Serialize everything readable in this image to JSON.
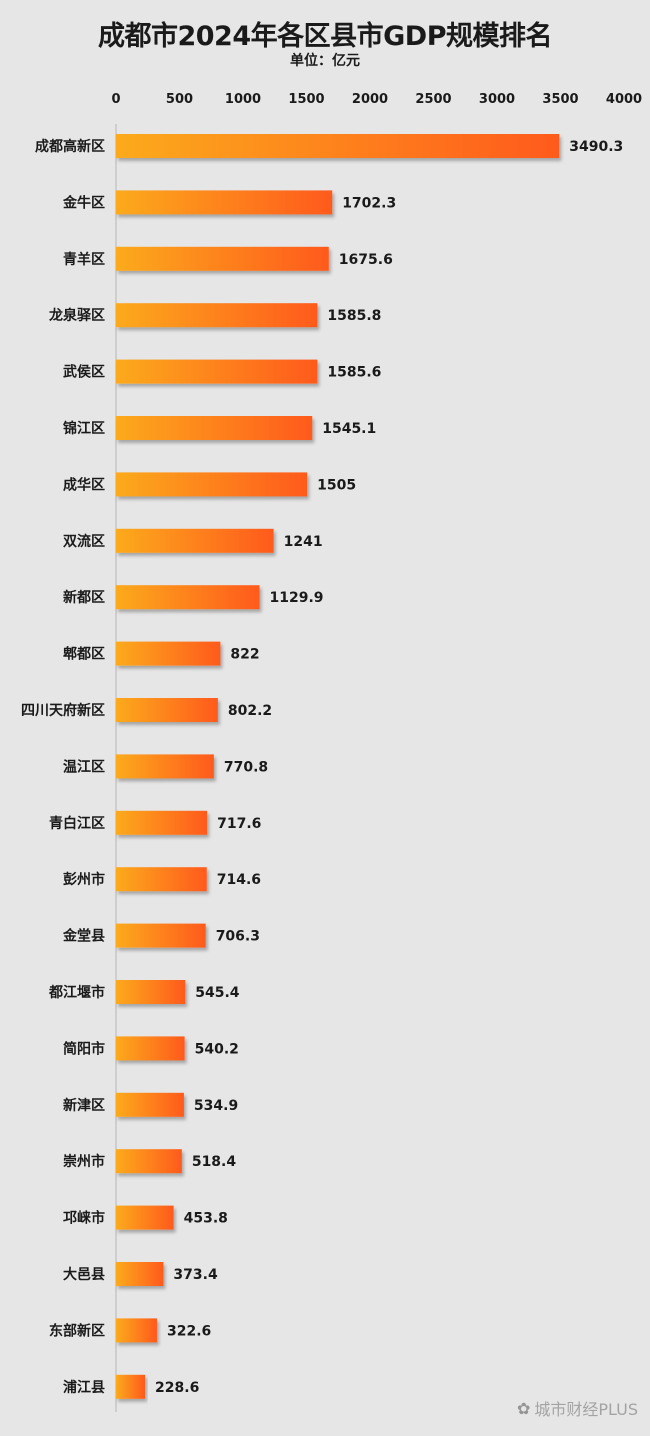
{
  "title": "成都市2024年各区县市GDP规模排名",
  "unit_label": "单位：亿元",
  "watermark": "城市财经PLUS",
  "watermark_icon": "wechat-icon",
  "colors": {
    "bar_start": "#fcaa1c",
    "bar_end": "#ff5a1f",
    "background": "#e6e6e6"
  },
  "chart_data": {
    "type": "bar",
    "orientation": "horizontal",
    "title": "成都市2024年各区县市GDP规模排名",
    "xlabel": "",
    "ylabel": "",
    "unit": "亿元",
    "xlim": [
      0,
      4000
    ],
    "x_ticks": [
      0,
      500,
      1000,
      1500,
      2000,
      2500,
      3000,
      3500,
      4000
    ],
    "x_axis_position": "top",
    "grid": false,
    "categories": [
      "成都高新区",
      "金牛区",
      "青羊区",
      "龙泉驿区",
      "武侯区",
      "锦江区",
      "成华区",
      "双流区",
      "新都区",
      "郫都区",
      "四川天府新区",
      "温江区",
      "青白江区",
      "彭州市",
      "金堂县",
      "都江堰市",
      "简阳市",
      "新津区",
      "崇州市",
      "邛崃市",
      "大邑县",
      "东部新区",
      "浦江县"
    ],
    "values": [
      3490.3,
      1702.3,
      1675.6,
      1585.8,
      1585.6,
      1545.1,
      1505,
      1241,
      1129.9,
      822,
      802.2,
      770.8,
      717.6,
      714.6,
      706.3,
      545.4,
      540.2,
      534.9,
      518.4,
      453.8,
      373.4,
      322.6,
      228.6
    ],
    "value_labels": [
      "3490.3",
      "1702.3",
      "1675.6",
      "1585.8",
      "1585.6",
      "1545.1",
      "1505",
      "1241",
      "1129.9",
      "822",
      "802.2",
      "770.8",
      "717.6",
      "714.6",
      "706.3",
      "545.4",
      "540.2",
      "534.9",
      "518.4",
      "453.8",
      "373.4",
      "322.6",
      "228.6"
    ]
  }
}
